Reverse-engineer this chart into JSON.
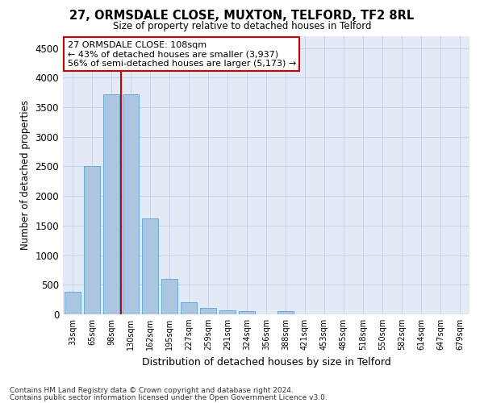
{
  "title": "27, ORMSDALE CLOSE, MUXTON, TELFORD, TF2 8RL",
  "subtitle": "Size of property relative to detached houses in Telford",
  "xlabel": "Distribution of detached houses by size in Telford",
  "ylabel": "Number of detached properties",
  "footnote1": "Contains HM Land Registry data © Crown copyright and database right 2024.",
  "footnote2": "Contains public sector information licensed under the Open Government Licence v3.0.",
  "annotation_line1": "27 ORMSDALE CLOSE: 108sqm",
  "annotation_line2": "← 43% of detached houses are smaller (3,937)",
  "annotation_line3": "56% of semi-detached houses are larger (5,173) →",
  "bar_color": "#adc6e0",
  "bar_edge_color": "#6aaad4",
  "vline_color": "#cc0000",
  "vline_x": 2.5,
  "categories": [
    "33sqm",
    "65sqm",
    "98sqm",
    "130sqm",
    "162sqm",
    "195sqm",
    "227sqm",
    "259sqm",
    "291sqm",
    "324sqm",
    "356sqm",
    "388sqm",
    "421sqm",
    "453sqm",
    "485sqm",
    "518sqm",
    "550sqm",
    "582sqm",
    "614sqm",
    "647sqm",
    "679sqm"
  ],
  "values": [
    375,
    2500,
    3725,
    3725,
    1625,
    600,
    210,
    110,
    65,
    50,
    0,
    55,
    0,
    0,
    0,
    0,
    0,
    0,
    0,
    0,
    0
  ],
  "ylim": [
    0,
    4700
  ],
  "yticks": [
    0,
    500,
    1000,
    1500,
    2000,
    2500,
    3000,
    3500,
    4000,
    4500
  ],
  "grid_color": "#c8d4e8",
  "background_color": "#e4eaf5"
}
